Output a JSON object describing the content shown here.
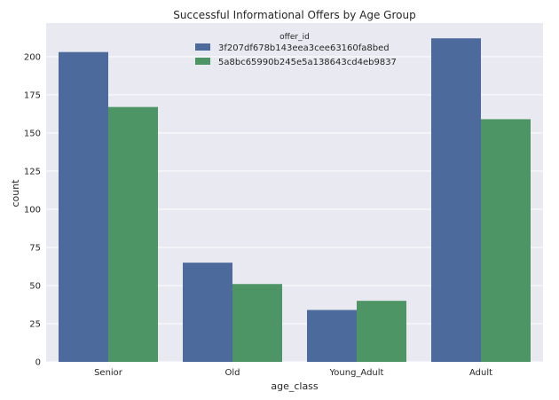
{
  "chart_data": {
    "type": "bar",
    "title": "Successful Informational Offers by Age Group",
    "xlabel": "age_class",
    "ylabel": "count",
    "categories": [
      "Senior",
      "Old",
      "Young_Adult",
      "Adult"
    ],
    "series": [
      {
        "name": "3f207df678b143eea3cee63160fa8bed",
        "values": [
          203,
          65,
          34,
          212
        ],
        "color": "#4c6a9c"
      },
      {
        "name": "5a8bc65990b245e5a138643cd4eb9837",
        "values": [
          167,
          51,
          40,
          159
        ],
        "color": "#4e9565"
      }
    ],
    "legend_title": "offer_id",
    "legend_position": "top-center",
    "ylim": [
      0,
      222
    ],
    "yticks": [
      0,
      25,
      50,
      75,
      100,
      125,
      150,
      175,
      200
    ],
    "grid": true,
    "background_color": "#e9e9f1",
    "grid_color": "#ffffff"
  }
}
